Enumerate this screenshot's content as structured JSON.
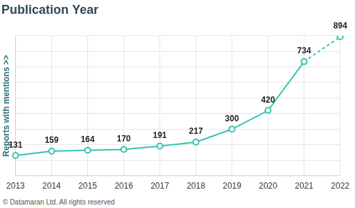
{
  "chart_data": {
    "type": "line",
    "title": "Publication Year",
    "y_label": "Reports with mentions >>",
    "footer": "© Datamaran Ltd. All rights reserved",
    "categories": [
      "2013",
      "2014",
      "2015",
      "2016",
      "2017",
      "2018",
      "2019",
      "2020",
      "2021",
      "2022"
    ],
    "values": [
      131,
      159,
      164,
      170,
      191,
      217,
      300,
      420,
      734,
      894
    ],
    "color": "#33c1b1",
    "marker": "circle",
    "ylim": [
      0,
      900
    ],
    "yticks": [
      0,
      100,
      200,
      300,
      400,
      500,
      600,
      700,
      800,
      900
    ],
    "grid": true,
    "data_labels": true,
    "tick_labels": "x"
  }
}
